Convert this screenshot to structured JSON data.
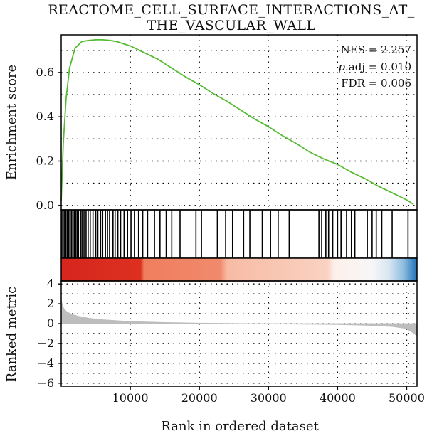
{
  "chart_data": {
    "type": "line",
    "title_lines": [
      "REACTOME_CELL_SURFACE_INTERACTIONS_AT_",
      "THE_VASCULAR_WALL"
    ],
    "xlabel": "Rank in ordered dataset",
    "xlim": [
      0,
      51500
    ],
    "x_ticks": [
      "10000",
      "20000",
      "30000",
      "40000",
      "50000"
    ],
    "x_tick_values": [
      10000,
      20000,
      30000,
      40000,
      50000
    ],
    "grid": "dotted",
    "annotation_position": "top-right",
    "stats": {
      "nes": "NES = 2.257",
      "padj_prefix": "p",
      "padj_rest": ".adj = 0.010",
      "fdr": "FDR = 0.006"
    },
    "enrichment": {
      "ylabel": "Enrichment score",
      "ylim": [
        -0.02,
        0.77
      ],
      "y_ticks": [
        "0.0",
        "0.2",
        "0.4",
        "0.6"
      ],
      "y_tick_values": [
        0.0,
        0.2,
        0.4,
        0.6
      ],
      "line_color": "#55bb33",
      "x": [
        0,
        300,
        700,
        1200,
        2000,
        3000,
        4000,
        5000,
        6000,
        7000,
        8000,
        9000,
        10000,
        12000,
        14000,
        16000,
        18000,
        20000,
        22000,
        24000,
        26000,
        28000,
        30000,
        32000,
        34000,
        36000,
        38000,
        40000,
        42000,
        44000,
        46000,
        48000,
        50000,
        51000
      ],
      "y": [
        0.02,
        0.28,
        0.48,
        0.62,
        0.71,
        0.74,
        0.745,
        0.748,
        0.748,
        0.745,
        0.74,
        0.73,
        0.72,
        0.69,
        0.66,
        0.62,
        0.58,
        0.545,
        0.505,
        0.47,
        0.43,
        0.39,
        0.355,
        0.315,
        0.28,
        0.24,
        0.21,
        0.185,
        0.15,
        0.12,
        0.085,
        0.055,
        0.025,
        0.005
      ]
    },
    "hits": [
      100,
      300,
      500,
      700,
      900,
      1100,
      1300,
      1500,
      1700,
      1900,
      2100,
      2300,
      2500,
      2800,
      3000,
      3300,
      3600,
      3900,
      4200,
      4600,
      5000,
      5300,
      5700,
      6000,
      6400,
      6700,
      7000,
      7500,
      7800,
      8200,
      8600,
      9100,
      9600,
      10100,
      10600,
      11200,
      11800,
      12500,
      13500,
      14300,
      15200,
      16000,
      17200,
      19500,
      20300,
      22600,
      23800,
      24800,
      26400,
      27300,
      29100,
      30300,
      31400,
      33000,
      37300,
      37700,
      38300,
      38700,
      39300,
      40000,
      40500,
      41300,
      42000,
      42500,
      44300,
      45000,
      45600,
      46400,
      47900,
      50200
    ],
    "color_bar": {
      "stops": [
        {
          "x": 0,
          "color": "#d7261e"
        },
        {
          "x": 11500,
          "color": "#dd3020"
        },
        {
          "x": 12000,
          "color": "#ef7e5e"
        },
        {
          "x": 23000,
          "color": "#f08a6c"
        },
        {
          "x": 24000,
          "color": "#f7bba4"
        },
        {
          "x": 38500,
          "color": "#fad2c2"
        },
        {
          "x": 39500,
          "color": "#fdf0ea"
        },
        {
          "x": 45000,
          "color": "#f7f7f7"
        },
        {
          "x": 47500,
          "color": "#d7e5f2"
        },
        {
          "x": 49500,
          "color": "#8fbee0"
        },
        {
          "x": 51500,
          "color": "#1f73b8"
        }
      ]
    },
    "ranked_metric": {
      "ylabel": "Ranked metric",
      "ylim": [
        -6.3,
        4.3
      ],
      "y_ticks": [
        "4",
        "2",
        "0",
        "−2",
        "−4",
        "−6"
      ],
      "y_tick_values": [
        4,
        2,
        0,
        -2,
        -4,
        -6
      ],
      "fill_color": "#bdbdbd",
      "x": [
        0,
        150,
        400,
        800,
        1500,
        2500,
        4000,
        6000,
        8000,
        10000,
        15000,
        20000,
        30000,
        40000,
        45000,
        48000,
        49500,
        50300,
        50900,
        51500
      ],
      "y": [
        2.5,
        1.9,
        1.5,
        1.2,
        0.95,
        0.75,
        0.55,
        0.4,
        0.3,
        0.22,
        0.12,
        0.05,
        -0.02,
        -0.1,
        -0.18,
        -0.3,
        -0.45,
        -0.65,
        -0.9,
        -1.25
      ]
    }
  }
}
